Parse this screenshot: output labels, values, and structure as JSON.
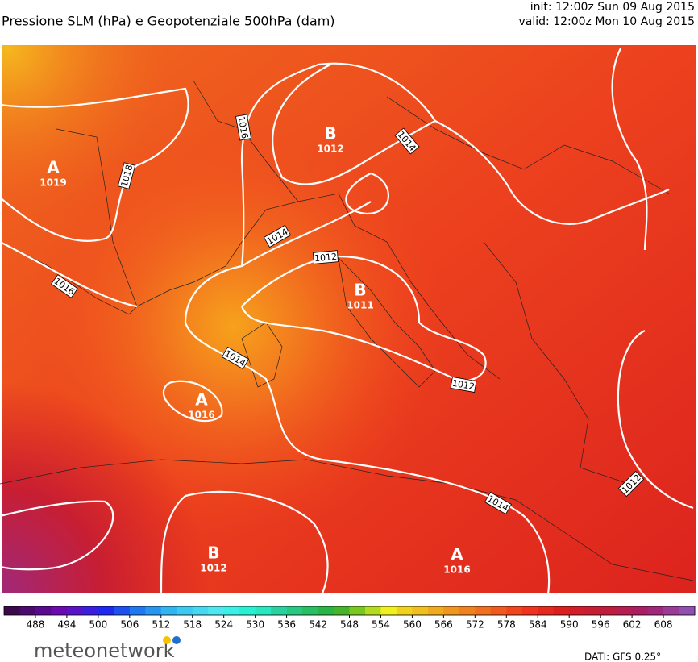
{
  "header": {
    "title": "Pressione SLM (hPa) e Geopotenziale 500hPa (dam)",
    "init": "init: 12:00z Sun 09 Aug 2015",
    "valid": "valid: 12:00z Mon 10 Aug 2015"
  },
  "centers": [
    {
      "letter": "A",
      "value": "1019"
    },
    {
      "letter": "B",
      "value": "1012"
    },
    {
      "letter": "B",
      "value": "1011"
    },
    {
      "letter": "A",
      "value": "1016"
    },
    {
      "letter": "B",
      "value": "1012"
    },
    {
      "letter": "A",
      "value": "1016"
    }
  ],
  "isobar_labels": [
    "1016",
    "1018",
    "1016",
    "1014",
    "1012",
    "1014",
    "1014",
    "1012",
    "1014",
    "1012"
  ],
  "colorbar": {
    "range": [
      482,
      614
    ],
    "ticks": [
      488,
      494,
      500,
      506,
      512,
      518,
      524,
      530,
      536,
      542,
      548,
      554,
      560,
      566,
      572,
      578,
      584,
      590,
      596,
      602,
      608
    ],
    "colors": [
      "#3a0a4a",
      "#4b0a6e",
      "#5a0a90",
      "#6a0ab0",
      "#5a14c8",
      "#3c1ee0",
      "#1e28f0",
      "#1e50f0",
      "#1e78f0",
      "#2896f0",
      "#32b4f0",
      "#3cc8f0",
      "#46d8f0",
      "#50e6f0",
      "#3cf0e6",
      "#28f0d2",
      "#28e6be",
      "#28d2a0",
      "#28c882",
      "#28be64",
      "#28b446",
      "#46b428",
      "#78c81e",
      "#b4dc1e",
      "#f0f01e",
      "#f0d21e",
      "#f0be1e",
      "#f0aa1e",
      "#f0961e",
      "#f0821e",
      "#f06e1e",
      "#f05a1e",
      "#f0461e",
      "#f0321e",
      "#e6281e",
      "#dc1e1e",
      "#d21e28",
      "#c81e32",
      "#be1e3c",
      "#b41e50",
      "#aa1e64",
      "#a0287a",
      "#9a3c96",
      "#9050b0"
    ]
  },
  "footer": {
    "logo": "meteonetwork",
    "source": "DATI: GFS 0.25°"
  }
}
